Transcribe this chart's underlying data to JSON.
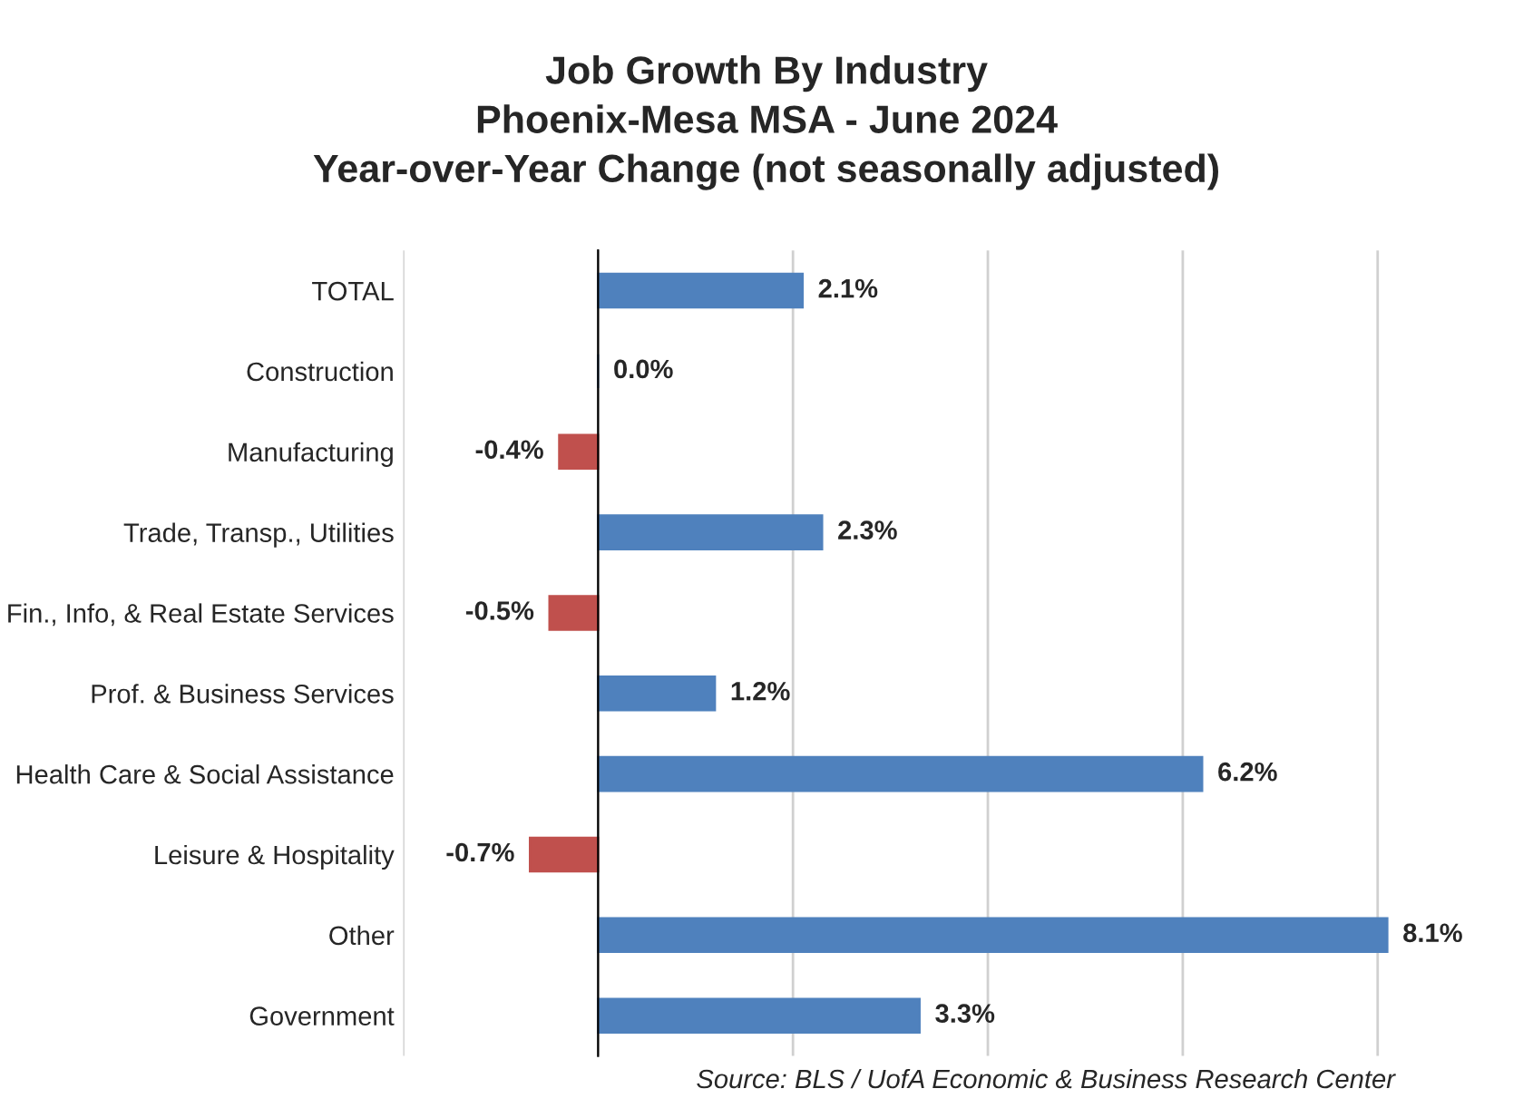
{
  "chart_data": {
    "type": "bar",
    "orientation": "horizontal",
    "title": "Job Growth By Industry\nPhoenix-Mesa MSA - June 2024\nYear-over-Year Change (not seasonally adjusted)",
    "categories": [
      "TOTAL",
      "Construction",
      "Manufacturing",
      "Trade, Transp., Utilities",
      "Fin., Info, & Real Estate Services",
      "Prof. & Business Services",
      "Health Care & Social Assistance",
      "Leisure & Hospitality",
      "Other",
      "Government"
    ],
    "values": [
      2.1,
      0.0,
      -0.4,
      2.3,
      -0.5,
      1.2,
      6.2,
      -0.7,
      8.1,
      3.3
    ],
    "value_labels": [
      "2.1%",
      "0.0%",
      "-0.4%",
      "2.3%",
      "-0.5%",
      "1.2%",
      "6.2%",
      "-0.7%",
      "8.1%",
      "3.3%"
    ],
    "colors": [
      "#4f81bd",
      "#4f81bd",
      "#c0504d",
      "#4f81bd",
      "#c0504d",
      "#4f81bd",
      "#4f81bd",
      "#c0504d",
      "#4f81bd",
      "#4f81bd"
    ],
    "xticks": [
      {
        "value": -2,
        "label": null
      },
      {
        "value": 0,
        "label": null
      },
      {
        "value": 2,
        "label": null
      },
      {
        "value": 4,
        "label": null
      },
      {
        "value": 6,
        "label": null
      },
      {
        "value": 8,
        "label": null
      }
    ],
    "grid": "x",
    "tick_labels": "y",
    "legend": false,
    "annotations": [
      "Source: BLS / UofA Economic & Business Research Center"
    ]
  }
}
